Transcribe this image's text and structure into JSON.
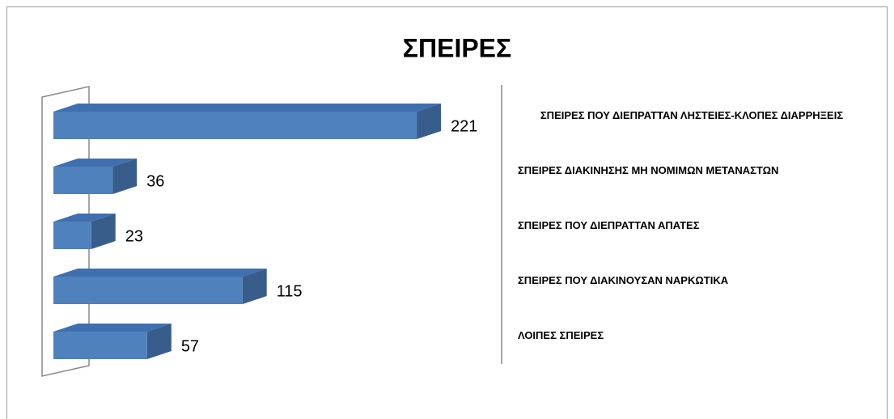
{
  "chart_data": {
    "type": "bar",
    "title": "ΣΠΕΙΡΕΣ",
    "categories": [
      "ΣΠΕΙΡΕΣ ΠΟΥ ΔΙΕΠΡΑΤΤΑΝ ΛΗΣΤΕΙΕΣ-ΚΛΟΠΕΣ ΔΙΑΡΡΗΞΕΙΣ",
      "ΣΠΕΙΡΕΣ ΔΙΑΚΙΝΗΣΗΣ ΜΗ ΝΟΜΙΜΩΝ ΜΕΤΑΝΑΣΤΩΝ",
      "ΣΠΕΙΡΕΣ ΠΟΥ ΔΙΕΠΡΑΤΤΑΝ ΑΠΑΤΕΣ",
      "ΣΠΕΙΡΕΣ ΠΟΥ ΔΙΑΚΙΝΟΥΣΑΝ ΝΑΡΚΩΤΙΚΑ",
      "ΛΟΙΠΕΣ ΣΠΕΙΡΕΣ"
    ],
    "values": [
      221,
      36,
      23,
      115,
      57
    ],
    "color": "#4f81bd"
  }
}
